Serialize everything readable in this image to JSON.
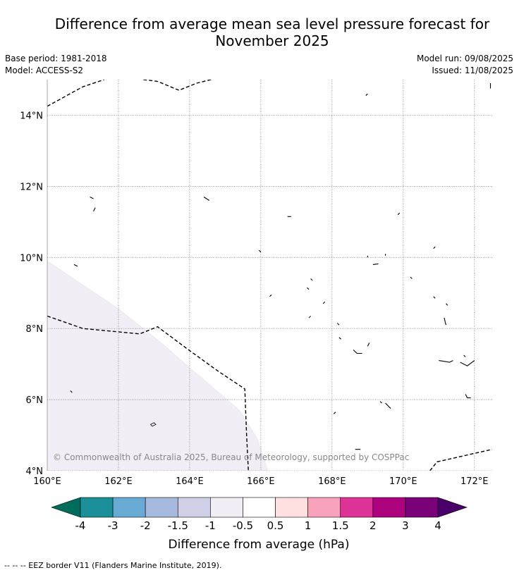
{
  "title_line1": "Difference from average mean sea level pressure forecast for",
  "title_line2": "November 2025",
  "base_period": "Base period: 1981-2018",
  "model": "Model: ACCESS-S2",
  "model_run": "Model run: 09/08/2025",
  "issued": "Issued: 11/08/2025",
  "copyright": "© Commonwealth of Australia 2025, Bureau of Meteorology, supported by COSPPac",
  "map": {
    "lon_range": [
      160,
      172.5
    ],
    "lat_range": [
      4,
      15
    ],
    "lon_ticks": [
      "160°E",
      "162°E",
      "164°E",
      "166°E",
      "168°E",
      "170°E",
      "172°E"
    ],
    "lat_ticks": [
      "4°N",
      "6°N",
      "8°N",
      "10°N",
      "12°N",
      "14°N"
    ],
    "lon_tick_values": [
      160,
      162,
      164,
      166,
      168,
      170,
      172
    ],
    "lat_tick_values": [
      4,
      6,
      8,
      10,
      12,
      14
    ],
    "anomaly_region": {
      "category": "-1 to -0.5 hPa",
      "color": "#f1eef5",
      "boundary": [
        [
          160,
          9.9
        ],
        [
          162,
          8.55
        ],
        [
          163.2,
          7.6
        ],
        [
          164,
          6.9
        ],
        [
          165.4,
          5.7
        ],
        [
          165.9,
          4.9
        ],
        [
          166.2,
          4
        ]
      ]
    },
    "eez_lines": [
      [
        [
          160,
          14.25
        ],
        [
          161,
          14.8
        ],
        [
          161.6,
          15
        ]
      ],
      [
        [
          162.7,
          15
        ],
        [
          163.1,
          14.95
        ],
        [
          163.7,
          14.7
        ],
        [
          164.2,
          14.9
        ],
        [
          164.6,
          15
        ]
      ],
      [
        [
          160,
          8.35
        ],
        [
          161,
          8
        ],
        [
          162.6,
          7.85
        ],
        [
          163.1,
          8.05
        ],
        [
          163.9,
          7.45
        ],
        [
          164.8,
          6.8
        ],
        [
          165.55,
          6.3
        ],
        [
          165.6,
          5
        ],
        [
          165.65,
          4
        ]
      ],
      [
        [
          170.75,
          4
        ],
        [
          170.95,
          4.25
        ],
        [
          172.5,
          4.6
        ]
      ]
    ],
    "islands": [
      [
        [
          161.2,
          11.7
        ],
        [
          161.3,
          11.65
        ]
      ],
      [
        [
          161.35,
          11.4
        ],
        [
          161.3,
          11.3
        ]
      ],
      [
        [
          164.4,
          11.7
        ],
        [
          164.55,
          11.6
        ]
      ],
      [
        [
          166.75,
          11.15
        ],
        [
          166.85,
          11.15
        ]
      ],
      [
        [
          169.0,
          14.6
        ],
        [
          168.95,
          14.55
        ]
      ],
      [
        [
          169.9,
          11.25
        ],
        [
          169.85,
          11.2
        ]
      ],
      [
        [
          165.95,
          10.2
        ],
        [
          166.0,
          10.15
        ]
      ],
      [
        [
          170.9,
          10.3
        ],
        [
          170.85,
          10.25
        ]
      ],
      [
        [
          169.0,
          10.05
        ],
        [
          169.0,
          10.0
        ]
      ],
      [
        [
          169.15,
          9.8
        ],
        [
          169.3,
          9.82
        ]
      ],
      [
        [
          169.5,
          10.1
        ],
        [
          169.5,
          10.05
        ]
      ],
      [
        [
          170.2,
          9.45
        ],
        [
          170.25,
          9.4
        ]
      ],
      [
        [
          167.4,
          9.4
        ],
        [
          167.45,
          9.35
        ]
      ],
      [
        [
          167.3,
          9.15
        ],
        [
          167.35,
          9.1
        ]
      ],
      [
        [
          167.8,
          8.75
        ],
        [
          167.75,
          8.7
        ]
      ],
      [
        [
          166.25,
          8.9
        ],
        [
          166.3,
          8.95
        ]
      ],
      [
        [
          170.85,
          8.9
        ],
        [
          170.9,
          8.85
        ]
      ],
      [
        [
          171.2,
          8.7
        ],
        [
          171.25,
          8.65
        ]
      ],
      [
        [
          171.15,
          8.3
        ],
        [
          171.2,
          8.1
        ]
      ],
      [
        [
          167.35,
          8.3
        ],
        [
          167.4,
          8.35
        ]
      ],
      [
        [
          168.15,
          8.15
        ],
        [
          168.2,
          8.1
        ]
      ],
      [
        [
          168.2,
          7.75
        ],
        [
          168.25,
          7.7
        ]
      ],
      [
        [
          168.6,
          7.4
        ],
        [
          168.7,
          7.3
        ],
        [
          168.85,
          7.3
        ]
      ],
      [
        [
          169.0,
          7.5
        ],
        [
          169.05,
          7.6
        ]
      ],
      [
        [
          171.0,
          7.1
        ],
        [
          171.3,
          7.05
        ],
        [
          171.4,
          7.1
        ]
      ],
      [
        [
          171.6,
          7.05
        ],
        [
          171.8,
          6.95
        ],
        [
          172.0,
          7.1
        ]
      ],
      [
        [
          171.7,
          7.25
        ],
        [
          171.75,
          7.2
        ]
      ],
      [
        [
          171.75,
          6.15
        ],
        [
          171.8,
          6.05
        ],
        [
          171.9,
          6.05
        ]
      ],
      [
        [
          169.5,
          5.9
        ],
        [
          169.6,
          5.8
        ],
        [
          169.65,
          5.75
        ]
      ],
      [
        [
          169.35,
          5.95
        ],
        [
          169.4,
          5.9
        ]
      ],
      [
        [
          168.05,
          5.6
        ],
        [
          168.1,
          5.65
        ]
      ],
      [
        [
          168.65,
          4.6
        ],
        [
          168.8,
          4.6
        ]
      ],
      [
        [
          160.75,
          9.8
        ],
        [
          160.85,
          9.75
        ]
      ],
      [
        [
          160.65,
          6.25
        ],
        [
          160.7,
          6.2
        ]
      ],
      [
        [
          172.45,
          14.9
        ],
        [
          172.45,
          14.75
        ]
      ]
    ],
    "small_atoll": [
      [
        162.9,
        5.3
      ],
      [
        163.0,
        5.35
      ],
      [
        163.05,
        5.3
      ],
      [
        162.95,
        5.25
      ],
      [
        162.9,
        5.3
      ]
    ]
  },
  "colorbar": {
    "label": "Difference from average (hPa)",
    "tick_labels": [
      "-4",
      "-3",
      "-2",
      "-1.5",
      "-1",
      "-0.5",
      "0.5",
      "1",
      "1.5",
      "2",
      "3",
      "4"
    ],
    "colors": [
      "#1b9098",
      "#67aad4",
      "#a7b9dc",
      "#cfcfe6",
      "#f1eef5",
      "#ffffff",
      "#fde0df",
      "#f9a2bc",
      "#dd3397",
      "#ad017e",
      "#7a0177"
    ],
    "under_color": "#016c59",
    "over_color": "#49006a"
  },
  "footer": "--  --  -- EEZ border V11 (Flanders Marine Institute, 2019)."
}
